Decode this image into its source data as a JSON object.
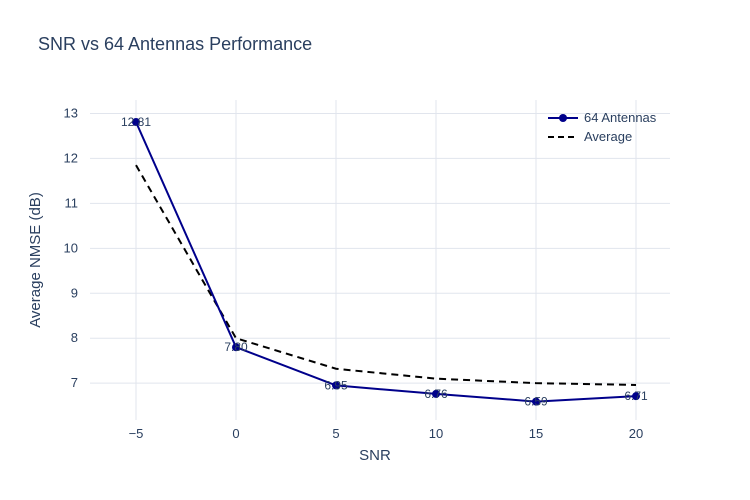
{
  "chart_data": {
    "type": "line",
    "title": "SNR vs 64 Antennas Performance",
    "xlabel": "SNR",
    "ylabel": "Average NMSE (dB)",
    "x": [
      -5,
      0,
      5,
      10,
      15,
      20
    ],
    "xticks": [
      -5,
      0,
      5,
      10,
      15,
      20
    ],
    "yticks": [
      7,
      8,
      9,
      10,
      11,
      12,
      13
    ],
    "xlim": [
      -7.3,
      21.7
    ],
    "ylim": [
      6.18,
      13.3
    ],
    "grid": true,
    "legend_position": "top-right",
    "series": [
      {
        "name": "64 Antennas",
        "values": [
          12.81,
          7.8,
          6.95,
          6.76,
          6.59,
          6.71
        ],
        "data_labels": [
          "12.81",
          "7.80",
          "6.95",
          "6.76",
          "6.59",
          "6.71"
        ],
        "color": "#00008b",
        "style": "lines+markers"
      },
      {
        "name": "Average",
        "values": [
          11.85,
          8.0,
          7.32,
          7.1,
          7.0,
          6.96
        ],
        "color": "#000000",
        "style": "dash"
      }
    ]
  }
}
